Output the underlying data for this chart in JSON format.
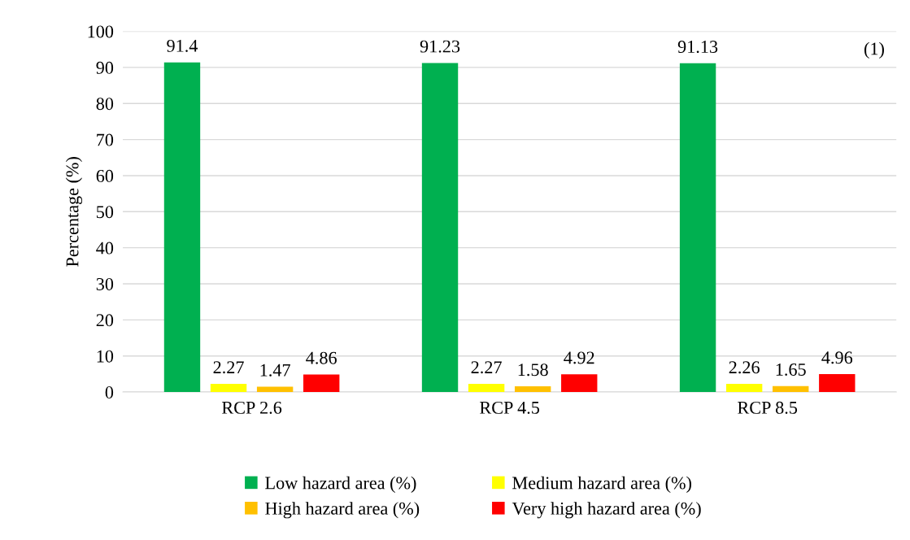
{
  "chart_data": {
    "type": "bar",
    "ylabel": "Percentage (%)",
    "categories": [
      "RCP 2.6",
      "RCP 4.5",
      "RCP 8.5"
    ],
    "series": [
      {
        "name": "Low hazard area (%)",
        "color": "#00b050",
        "values": [
          91.4,
          91.23,
          91.13
        ]
      },
      {
        "name": "Medium hazard area (%)",
        "color": "#ffff00",
        "values": [
          2.27,
          2.27,
          2.26
        ]
      },
      {
        "name": "High hazard area (%)",
        "color": "#ffc000",
        "values": [
          1.47,
          1.58,
          1.65
        ]
      },
      {
        "name": "Very high hazard area (%)",
        "color": "#ff0000",
        "values": [
          4.86,
          4.92,
          4.96
        ]
      }
    ],
    "ylim": [
      0,
      100
    ],
    "yticks": [
      0,
      10,
      20,
      30,
      40,
      50,
      60,
      70,
      80,
      90,
      100
    ],
    "grid": "y",
    "legend": "bottom",
    "data_labels": true,
    "annotations": [
      "(1)"
    ]
  }
}
